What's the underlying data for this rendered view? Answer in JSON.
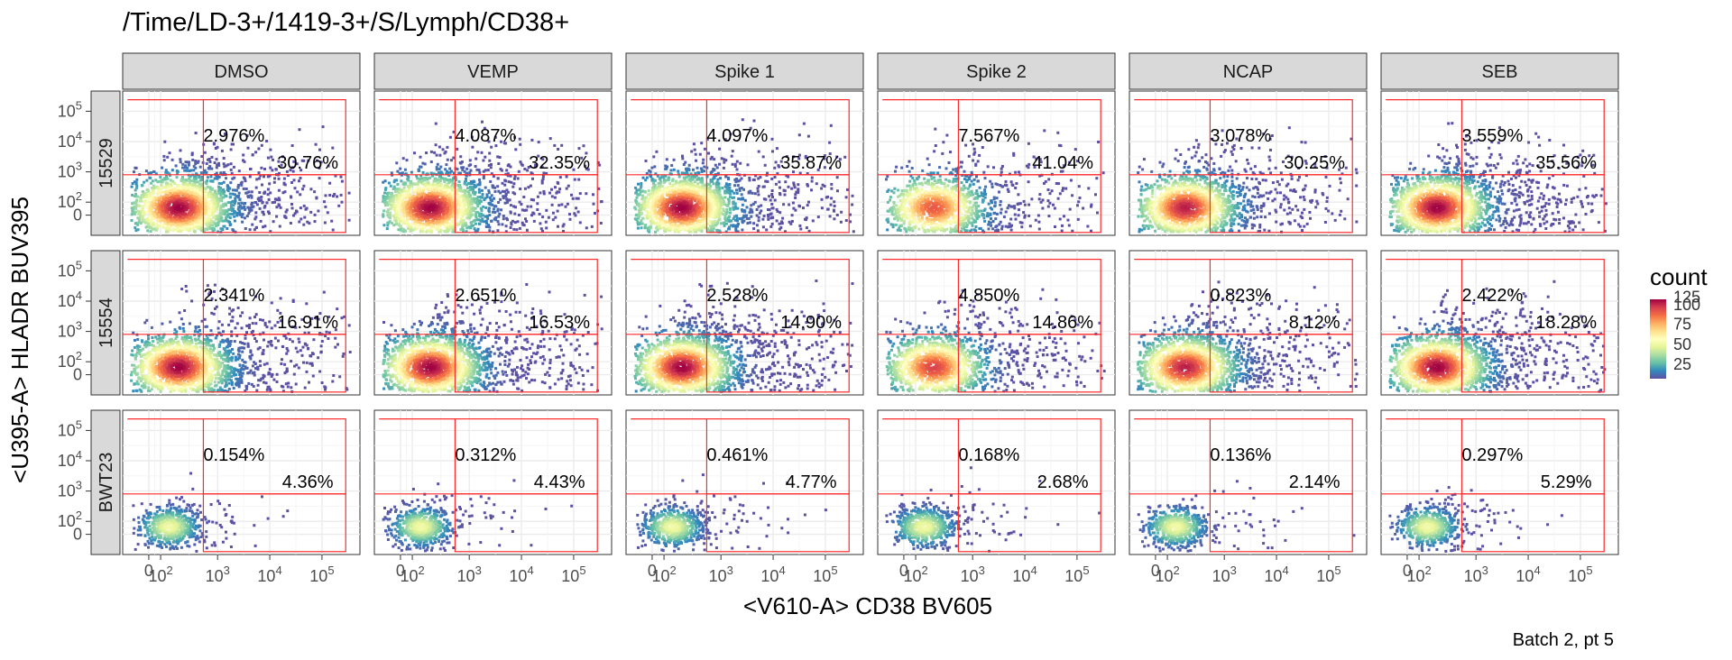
{
  "chart_data": {
    "type": "heatmap",
    "title": "/Time/LD-3+/1419-3+/S/Lymph/CD38+",
    "xlabel": "<V610-A> CD38 BV605",
    "ylabel": "<U395-A> HLADR BUV395",
    "caption": "Batch 2, pt 5",
    "columns": [
      "DMSO",
      "VEMP",
      "Spike 1",
      "Spike 2",
      "NCAP",
      "SEB"
    ],
    "rows": [
      "15529",
      "15554",
      "BWT23"
    ],
    "x_ticks": [
      {
        "base": "0",
        "exp": ""
      },
      {
        "base": "10",
        "exp": "2"
      },
      {
        "base": "10",
        "exp": "3"
      },
      {
        "base": "10",
        "exp": "4"
      },
      {
        "base": "10",
        "exp": "5"
      }
    ],
    "y_ticks": [
      {
        "base": "0",
        "exp": ""
      },
      {
        "base": "10",
        "exp": "2"
      },
      {
        "base": "10",
        "exp": "3"
      },
      {
        "base": "10",
        "exp": "4"
      },
      {
        "base": "10",
        "exp": "5"
      }
    ],
    "legend": {
      "title": "count",
      "labels": [
        "25",
        "50",
        "75",
        "100",
        "125"
      ]
    },
    "colors": {
      "gate": "#ff2a2a",
      "strip_fill": "#d9d9d9",
      "grid": "#ebebeb",
      "scale": [
        "#5e4fa2",
        "#3288bd",
        "#66c2a5",
        "#abdda4",
        "#e6f598",
        "#ffffbf",
        "#fee08b",
        "#fdae61",
        "#f46d43",
        "#d53e4f",
        "#9e0142"
      ]
    },
    "gates": [
      {
        "row": "15529",
        "col": "DMSO",
        "upper": "2.976%",
        "lower": "30.76%",
        "density": 1.0
      },
      {
        "row": "15529",
        "col": "VEMP",
        "upper": "4.087%",
        "lower": "32.35%",
        "density": 1.0
      },
      {
        "row": "15529",
        "col": "Spike 1",
        "upper": "4.097%",
        "lower": "35.87%",
        "density": 1.0
      },
      {
        "row": "15529",
        "col": "Spike 2",
        "upper": "7.567%",
        "lower": "41.04%",
        "density": 0.65
      },
      {
        "row": "15529",
        "col": "NCAP",
        "upper": "3.078%",
        "lower": "30.25%",
        "density": 0.9
      },
      {
        "row": "15529",
        "col": "SEB",
        "upper": "3.559%",
        "lower": "35.56%",
        "density": 1.0
      },
      {
        "row": "15554",
        "col": "DMSO",
        "upper": "2.341%",
        "lower": "16.91%",
        "density": 1.0
      },
      {
        "row": "15554",
        "col": "VEMP",
        "upper": "2.651%",
        "lower": "16.53%",
        "density": 1.0
      },
      {
        "row": "15554",
        "col": "Spike 1",
        "upper": "2.528%",
        "lower": "14.90%",
        "density": 1.0
      },
      {
        "row": "15554",
        "col": "Spike 2",
        "upper": "4.850%",
        "lower": "14.86%",
        "density": 0.75
      },
      {
        "row": "15554",
        "col": "NCAP",
        "upper": "0.823%",
        "lower": "8.12%",
        "density": 0.9
      },
      {
        "row": "15554",
        "col": "SEB",
        "upper": "2.422%",
        "lower": "18.28%",
        "density": 1.0
      },
      {
        "row": "BWT23",
        "col": "DMSO",
        "upper": "0.154%",
        "lower": "4.36%",
        "density": 0.3
      },
      {
        "row": "BWT23",
        "col": "VEMP",
        "upper": "0.312%",
        "lower": "4.43%",
        "density": 0.25
      },
      {
        "row": "BWT23",
        "col": "Spike 1",
        "upper": "0.461%",
        "lower": "4.77%",
        "density": 0.28
      },
      {
        "row": "BWT23",
        "col": "Spike 2",
        "upper": "0.168%",
        "lower": "2.68%",
        "density": 0.25
      },
      {
        "row": "BWT23",
        "col": "NCAP",
        "upper": "0.136%",
        "lower": "2.14%",
        "density": 0.25
      },
      {
        "row": "BWT23",
        "col": "SEB",
        "upper": "0.297%",
        "lower": "5.29%",
        "density": 0.3
      }
    ]
  }
}
